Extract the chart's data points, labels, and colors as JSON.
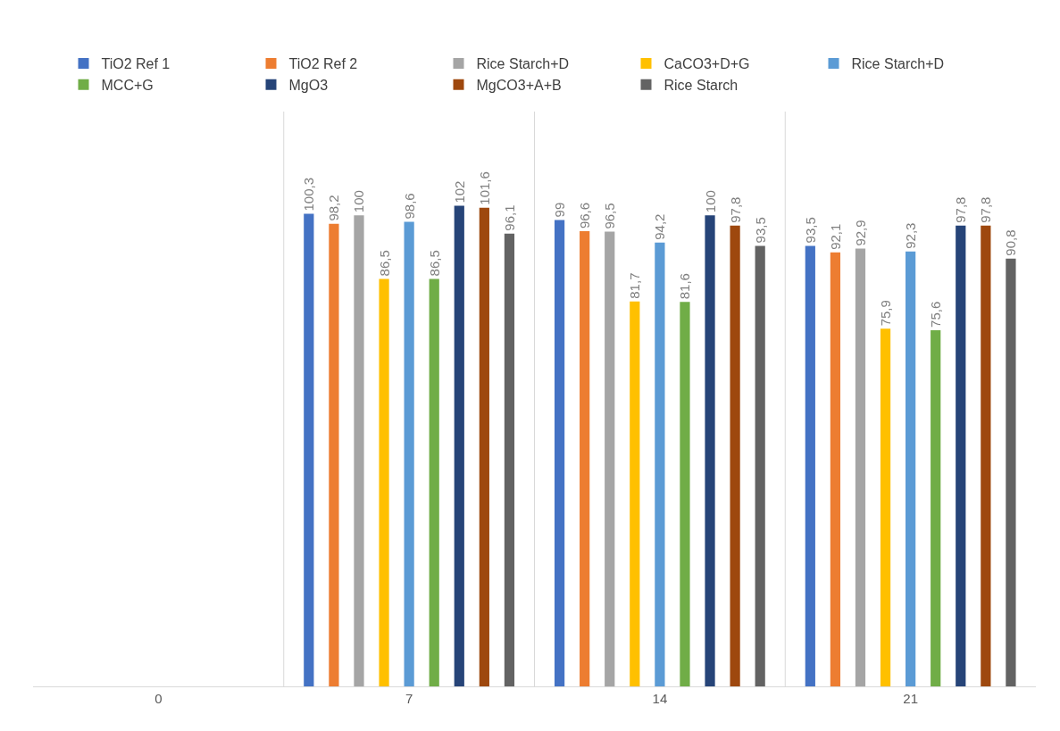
{
  "chart_data": {
    "type": "bar",
    "categories": [
      "0",
      "7",
      "14",
      "21"
    ],
    "ylim": [
      0,
      122
    ],
    "grid": "x",
    "legend": "top",
    "tick_labels": "x",
    "series": [
      {
        "name": "TiO2 Ref 1",
        "color": "#4472c4",
        "values": [
          null,
          100.3,
          99,
          93.5
        ],
        "value_labels": [
          null,
          "100,3",
          "99",
          "93,5"
        ]
      },
      {
        "name": "TiO2 Ref 2",
        "color": "#ed7d31",
        "values": [
          null,
          98.2,
          96.6,
          92.1
        ],
        "value_labels": [
          null,
          "98,2",
          "96,6",
          "92,1"
        ]
      },
      {
        "name": "Rice Starch+D",
        "color": "#a5a5a5",
        "values": [
          null,
          100,
          96.5,
          92.9
        ],
        "value_labels": [
          null,
          "100",
          "96,5",
          "92,9"
        ]
      },
      {
        "name": "CaCO3+D+G",
        "color": "#ffc000",
        "values": [
          null,
          86.5,
          81.7,
          75.9
        ],
        "value_labels": [
          null,
          "86,5",
          "81,7",
          "75,9"
        ]
      },
      {
        "name": "Rice Starch+D",
        "color": "#5b9bd5",
        "values": [
          null,
          98.6,
          94.2,
          92.3
        ],
        "value_labels": [
          null,
          "98,6",
          "94,2",
          "92,3"
        ]
      },
      {
        "name": "MCC+G",
        "color": "#70ad47",
        "values": [
          null,
          86.5,
          81.6,
          75.6
        ],
        "value_labels": [
          null,
          "86,5",
          "81,6",
          "75,6"
        ]
      },
      {
        "name": "MgO3",
        "color": "#264478",
        "values": [
          null,
          102,
          100,
          97.8
        ],
        "value_labels": [
          null,
          "102",
          "100",
          "97,8"
        ]
      },
      {
        "name": "MgCO3+A+B",
        "color": "#9e480e",
        "values": [
          null,
          101.6,
          97.8,
          97.8
        ],
        "value_labels": [
          null,
          "101,6",
          "97,8",
          "97,8"
        ]
      },
      {
        "name": "Rice Starch",
        "color": "#636363",
        "values": [
          null,
          96.1,
          93.5,
          90.8
        ],
        "value_labels": [
          null,
          "96,1",
          "93,5",
          "90,8"
        ]
      }
    ]
  }
}
